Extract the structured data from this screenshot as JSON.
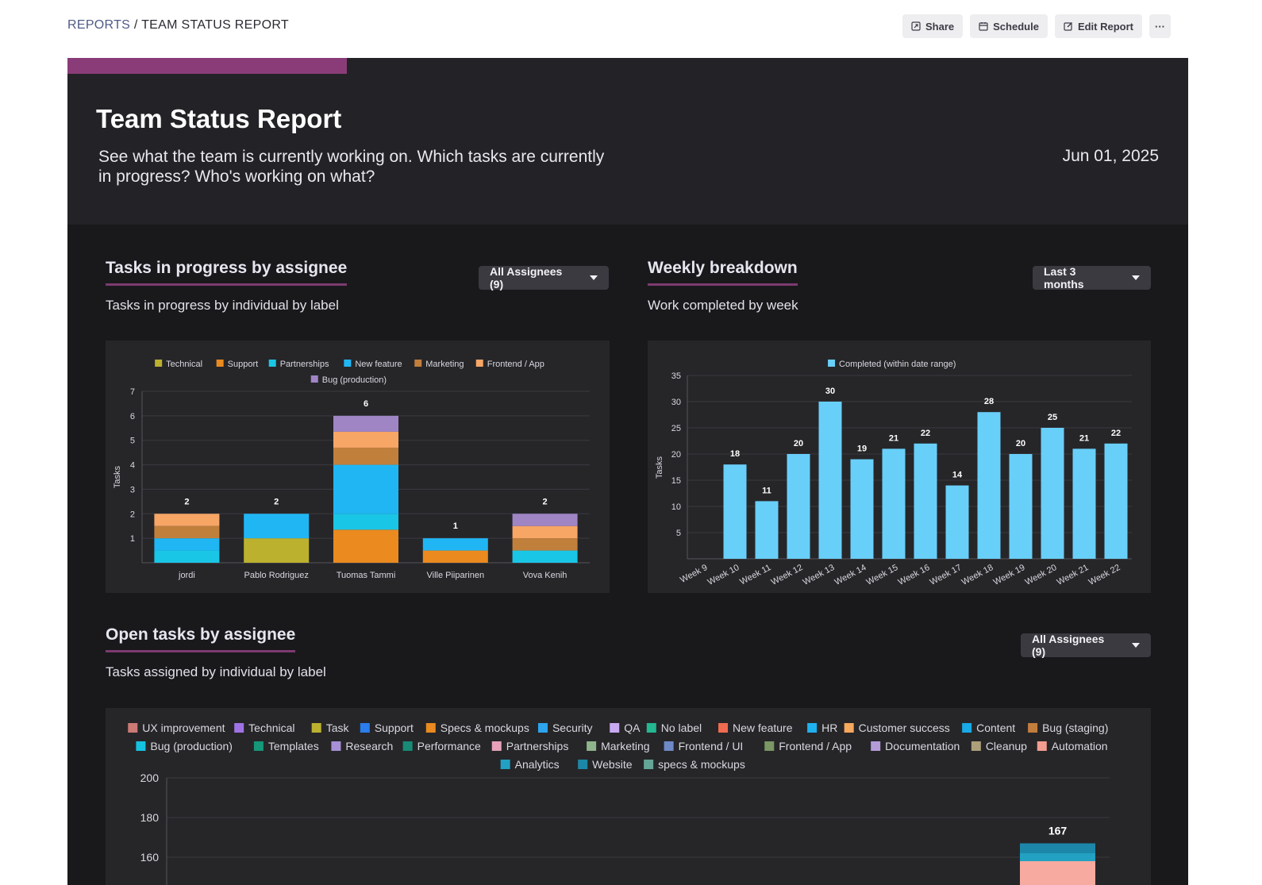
{
  "breadcrumb": {
    "root": "REPORTS",
    "separator": " / ",
    "current": "TEAM STATUS REPORT"
  },
  "actions": {
    "share": "Share",
    "schedule": "Schedule",
    "edit": "Edit Report",
    "more": "···"
  },
  "report": {
    "title": "Team Status Report",
    "description": "See what the team is currently working on. Which tasks are currently in progress? Who's working on what?",
    "date": "Jun 01, 2025",
    "accent_color": "#8a3c78"
  },
  "section1": {
    "title": "Tasks in progress by assignee",
    "subtitle": "Tasks in progress by individual by label",
    "filter": "All Assignees (9)"
  },
  "section2": {
    "title": "Weekly breakdown",
    "subtitle": "Work completed by week",
    "filter": "Last 3 months"
  },
  "section3": {
    "title": "Open tasks by assignee",
    "subtitle": "Tasks assigned by individual by label",
    "filter": "All Assignees (9)"
  },
  "chart_data": [
    {
      "type": "bar",
      "stacked": true,
      "title": "Tasks in progress by individual by label",
      "ylabel": "Tasks",
      "ylim": [
        0,
        7
      ],
      "yticks": [
        1,
        2,
        3,
        4,
        5,
        6,
        7
      ],
      "categories": [
        "jordi",
        "Pablo Rodriguez",
        "Tuomas Tammi",
        "Ville Piiparinen",
        "Vova Kenih"
      ],
      "totals": [
        2,
        2,
        6,
        1,
        2
      ],
      "series": [
        {
          "name": "Technical",
          "color": "#bcb12f",
          "values": [
            0,
            1,
            0,
            0,
            0
          ]
        },
        {
          "name": "Support",
          "color": "#ea8a1f",
          "values": [
            0,
            0,
            1.35,
            0.5,
            0
          ]
        },
        {
          "name": "Partnerships",
          "color": "#1ac6e6",
          "values": [
            0.5,
            0,
            0.65,
            0,
            0.5
          ]
        },
        {
          "name": "New feature",
          "color": "#20b6f4",
          "values": [
            0.5,
            1,
            2,
            0.5,
            0
          ]
        },
        {
          "name": "Marketing",
          "color": "#c17f3c",
          "values": [
            0.5,
            0,
            0.7,
            0,
            0.5
          ]
        },
        {
          "name": "Frontend / App",
          "color": "#f7a666",
          "values": [
            0.5,
            0,
            0.65,
            0,
            0.5
          ]
        },
        {
          "name": "Bug (production)",
          "color": "#a085c5",
          "values": [
            0,
            0,
            0.65,
            0,
            0.5
          ]
        }
      ]
    },
    {
      "type": "bar",
      "title": "Work completed by week",
      "ylabel": "Tasks",
      "ylim": [
        0,
        35
      ],
      "yticks": [
        5,
        10,
        15,
        20,
        25,
        30,
        35
      ],
      "legend": "Completed (within date range)",
      "color": "#68cff9",
      "categories": [
        "Week 9",
        "Week 10",
        "Week 11",
        "Week 12",
        "Week 13",
        "Week 14",
        "Week 15",
        "Week 16",
        "Week 17",
        "Week 18",
        "Week 19",
        "Week 20",
        "Week 21",
        "Week 22"
      ],
      "values": [
        null,
        18,
        11,
        20,
        30,
        19,
        21,
        22,
        14,
        28,
        20,
        25,
        21,
        22
      ]
    },
    {
      "type": "bar",
      "stacked": true,
      "title": "Tasks assigned by individual by label",
      "ylim": [
        0,
        200
      ],
      "yticks": [
        160,
        180,
        200
      ],
      "visible_total": 167,
      "legend": [
        {
          "name": "UX improvement",
          "color": "#cc7a74"
        },
        {
          "name": "Technical",
          "color": "#9f73e4"
        },
        {
          "name": "Task",
          "color": "#bcb12f"
        },
        {
          "name": "Support",
          "color": "#2b7cec"
        },
        {
          "name": "Specs & mockups",
          "color": "#ea8a1f"
        },
        {
          "name": "Security",
          "color": "#2ea3ee"
        },
        {
          "name": "QA",
          "color": "#c9a9ef"
        },
        {
          "name": "No label",
          "color": "#23b892"
        },
        {
          "name": "New feature",
          "color": "#f06b50"
        },
        {
          "name": "HR",
          "color": "#1fb0f0"
        },
        {
          "name": "Customer success",
          "color": "#f6a85d"
        },
        {
          "name": "Content",
          "color": "#18a9e6"
        },
        {
          "name": "Bug (staging)",
          "color": "#c27d3d"
        },
        {
          "name": "Bug (production)",
          "color": "#15c1e1"
        },
        {
          "name": "Templates",
          "color": "#169779"
        },
        {
          "name": "Research",
          "color": "#a790d6"
        },
        {
          "name": "Performance",
          "color": "#188a76"
        },
        {
          "name": "Partnerships",
          "color": "#e8a1b8"
        },
        {
          "name": "Marketing",
          "color": "#8fb38a"
        },
        {
          "name": "Frontend / UI",
          "color": "#6f89c7"
        },
        {
          "name": "Frontend / App",
          "color": "#7a9764"
        },
        {
          "name": "Documentation",
          "color": "#b49bd8"
        },
        {
          "name": "Cleanup",
          "color": "#ad9f7a"
        },
        {
          "name": "Automation",
          "color": "#f29d90"
        },
        {
          "name": "Analytics",
          "color": "#22a1c2"
        },
        {
          "name": "Website",
          "color": "#1c87a8"
        },
        {
          "name": "specs & mockups",
          "color": "#63a597"
        }
      ],
      "visible_segments": [
        {
          "name": "Automation",
          "color": "#f7aa9f",
          "from": 0,
          "to": 158
        },
        {
          "name": "Analytics",
          "color": "#22a1c2",
          "from": 158,
          "to": 162
        },
        {
          "name": "Website",
          "color": "#1c87a8",
          "from": 162,
          "to": 167
        }
      ]
    }
  ]
}
